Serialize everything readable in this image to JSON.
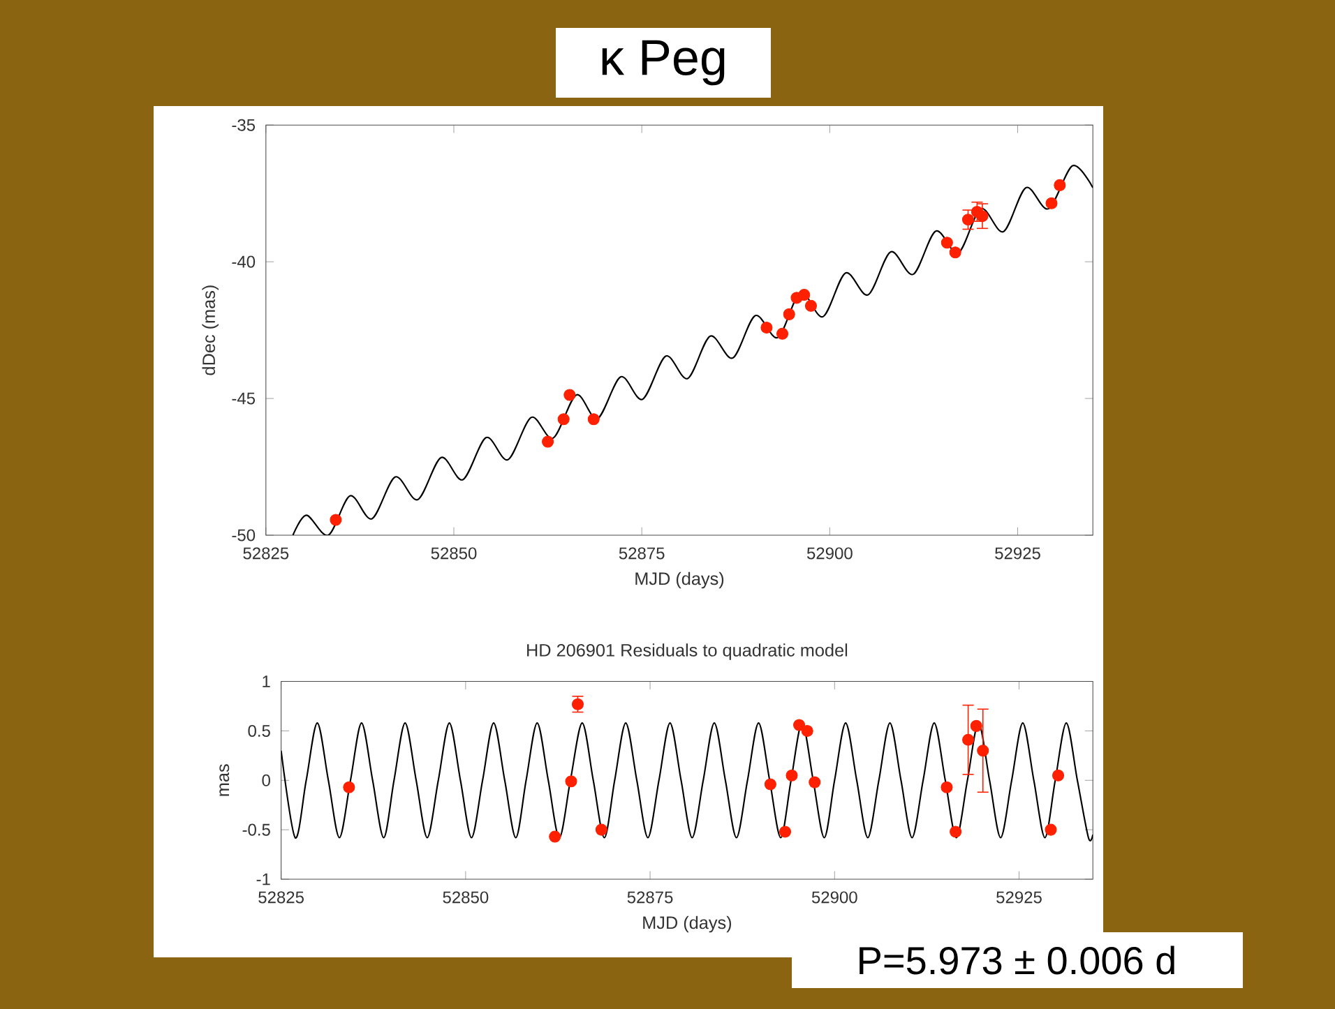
{
  "chart_data": [
    {
      "type": "scatter",
      "title": "κ Peg",
      "xlabel": "MJD (days)",
      "ylabel": "dDec (mas)",
      "xlim": [
        52825,
        52935
      ],
      "ylim": [
        -50,
        -35
      ],
      "xticks": [
        52825,
        52850,
        52875,
        52900,
        52925
      ],
      "yticks": [
        -50,
        -45,
        -40,
        -35
      ],
      "series": [
        {
          "type": "line",
          "color": "#000000",
          "marker": "none",
          "x": [
            52828.6,
            52830.4,
            52833.3,
            52836.2,
            52839.1,
            52842.2,
            52845.2,
            52848.3,
            52851.2,
            52854.3,
            52857.2,
            52860.3,
            52863.2,
            52866.3,
            52869.1,
            52872.2,
            52875.1,
            52878.2,
            52881.1,
            52884.1,
            52887.1,
            52890.1,
            52893.1,
            52896.1,
            52899.1,
            52902.1,
            52905.1,
            52908.1,
            52911.1,
            52914.1,
            52917.1,
            52920.1,
            52923.1,
            52926.1,
            52929.1,
            52932.3,
            52935
          ],
          "values": [
            -50,
            -49.27,
            -50,
            -48.56,
            -49.4,
            -47.87,
            -48.7,
            -47.16,
            -47.97,
            -46.43,
            -47.24,
            -45.69,
            -46.45,
            -44.87,
            -45.74,
            -44.21,
            -45.03,
            -43.45,
            -44.27,
            -42.72,
            -43.52,
            -41.97,
            -42.77,
            -41.12,
            -42.01,
            -40.41,
            -41.21,
            -39.64,
            -40.46,
            -38.88,
            -39.68,
            -38.06,
            -38.9,
            -37.29,
            -38.06,
            -36.49,
            -37.29
          ]
        },
        {
          "color": "#ff2000",
          "marker": "circle",
          "x": [
            52834.3,
            52862.5,
            52864.6,
            52865.4,
            52868.6,
            52891.6,
            52893.7,
            52894.6,
            52895.6,
            52896.6,
            52897.5,
            52915.6,
            52916.7,
            52918.4,
            52919.6,
            52920.3,
            52929.5,
            52930.6
          ],
          "values": [
            -49.44,
            -46.58,
            -45.76,
            -44.87,
            -45.76,
            -42.41,
            -42.63,
            -41.92,
            -41.32,
            -41.21,
            -41.61,
            -39.3,
            -39.66,
            -38.46,
            -38.17,
            -38.33,
            -37.86,
            -37.2
          ],
          "errors": [
            null,
            null,
            null,
            null,
            null,
            null,
            null,
            null,
            null,
            null,
            null,
            null,
            null,
            0.35,
            0.35,
            0.45,
            null,
            null
          ]
        }
      ]
    },
    {
      "type": "scatter",
      "title": "HD 206901 Residuals to quadratic model",
      "xlabel": "MJD (days)",
      "ylabel": "mas",
      "xlim": [
        52825,
        52935
      ],
      "ylim": [
        -1,
        1
      ],
      "xticks": [
        52825,
        52850,
        52875,
        52900,
        52925
      ],
      "yticks": [
        -1,
        -0.5,
        0,
        0.5,
        1
      ],
      "annotations": [
        "P=5.973 ± 0.006 d"
      ],
      "series": [
        {
          "type": "line",
          "color": "#000000",
          "marker": "none",
          "x": [
            52825,
            52826.9,
            52828.4,
            52829.9,
            52831.4,
            52832.9,
            52834.4,
            52835.9,
            52837.4,
            52838.9,
            52840.3,
            52841.8,
            52843.3,
            52844.8,
            52846.3,
            52847.8,
            52849.3,
            52850.8,
            52852.3,
            52853.8,
            52855.3,
            52856.8,
            52858.2,
            52859.7,
            52861.2,
            52862.7,
            52864.2,
            52865.8,
            52867.3,
            52868.8,
            52870.2,
            52871.7,
            52873.2,
            52874.7,
            52876.2,
            52877.7,
            52879.2,
            52880.7,
            52882.2,
            52883.7,
            52885.2,
            52886.7,
            52888.2,
            52889.7,
            52891.2,
            52892.7,
            52894.1,
            52895.6,
            52897.1,
            52898.6,
            52900,
            52901.5,
            52903,
            52904.5,
            52906,
            52907.5,
            52909,
            52910.5,
            52912,
            52913.5,
            52915,
            52916.5,
            52918,
            52919.5,
            52921,
            52922.5,
            52924,
            52925.5,
            52927,
            52928.5,
            52929.9,
            52931.4,
            52932.9,
            52934.4,
            52935
          ],
          "values": [
            0.3,
            -0.58,
            0,
            0.58,
            0,
            -0.58,
            0,
            0.58,
            0,
            -0.58,
            0,
            0.58,
            0,
            -0.58,
            0,
            0.58,
            0,
            -0.58,
            0,
            0.58,
            0,
            -0.58,
            0,
            0.58,
            0,
            -0.58,
            0,
            0.58,
            0,
            -0.58,
            0,
            0.58,
            0,
            -0.58,
            0,
            0.58,
            0,
            -0.58,
            0,
            0.58,
            0,
            -0.58,
            0,
            0.58,
            0,
            -0.58,
            0,
            0.58,
            0,
            -0.58,
            0,
            0.58,
            0,
            -0.58,
            0,
            0.58,
            0,
            -0.58,
            0,
            0.58,
            0,
            -0.58,
            0,
            0.58,
            0,
            -0.58,
            0,
            0.58,
            0,
            -0.58,
            0,
            0.58,
            0,
            -0.58,
            -0.55
          ]
        },
        {
          "color": "#ff2000",
          "marker": "circle",
          "x": [
            52834.2,
            52862.1,
            52864.3,
            52865.2,
            52868.4,
            52891.3,
            52893.3,
            52894.2,
            52895.2,
            52896.3,
            52897.3,
            52915.2,
            52916.4,
            52918.1,
            52919.2,
            52920.1,
            52929.3,
            52930.3
          ],
          "values": [
            -0.07,
            -0.57,
            -0.01,
            0.77,
            -0.5,
            -0.04,
            -0.52,
            0.05,
            0.56,
            0.5,
            -0.02,
            -0.07,
            -0.52,
            0.41,
            0.55,
            0.3,
            -0.5,
            0.05
          ],
          "errors": [
            null,
            null,
            null,
            0.08,
            null,
            null,
            null,
            null,
            null,
            null,
            null,
            null,
            null,
            0.35,
            null,
            0.42,
            null,
            null
          ]
        }
      ]
    }
  ]
}
